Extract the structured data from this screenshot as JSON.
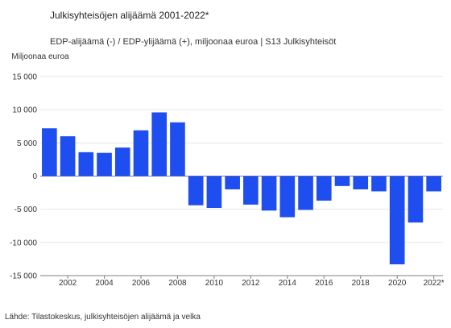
{
  "header": {
    "title": "Julkisyhteisöjen alijäämä 2001-2022*",
    "subtitle": "EDP-alijäämä (-) / EDP-ylijäämä (+), miljoonaa euroa | S13 Julkisyhteisöt"
  },
  "footer": {
    "source": "Lähde: Tilastokeskus, julkisyhteisöjen alijäämä ja velka"
  },
  "chart_data": {
    "type": "bar",
    "title": "Julkisyhteisöjen alijäämä 2001-2022*",
    "subtitle": "EDP-alijäämä (-) / EDP-ylijäämä (+), miljoonaa euroa | S13 Julkisyhteisöt",
    "ylabel": "Miljoonaa euroa",
    "xlabel": "",
    "categories": [
      "2001",
      "2002",
      "2003",
      "2004",
      "2005",
      "2006",
      "2007",
      "2008",
      "2009",
      "2010",
      "2011",
      "2012",
      "2013",
      "2014",
      "2015",
      "2016",
      "2017",
      "2018",
      "2019",
      "2020",
      "2021",
      "2022*"
    ],
    "x_tick_labels": [
      "2002",
      "2004",
      "2006",
      "2008",
      "2010",
      "2012",
      "2014",
      "2016",
      "2018",
      "2020",
      "2022*"
    ],
    "values": [
      7200,
      6000,
      3600,
      3500,
      4300,
      6900,
      9600,
      8100,
      -4400,
      -4800,
      -2000,
      -4300,
      -5200,
      -6200,
      -5100,
      -3700,
      -1500,
      -2000,
      -2300,
      -13300,
      -7000,
      -2300
    ],
    "ylim": [
      -15000,
      15000
    ],
    "y_ticks": [
      15000,
      10000,
      5000,
      0,
      -5000,
      -10000,
      -15000
    ],
    "y_tick_labels": [
      "15 000",
      "10 000",
      "5 000",
      "0",
      "-5 000",
      "-10 000",
      "-15 000"
    ],
    "grid": true,
    "bar_color": "#1f4ef0",
    "grid_color": "#e6e6e6",
    "axis_color": "#7f7f7f"
  }
}
